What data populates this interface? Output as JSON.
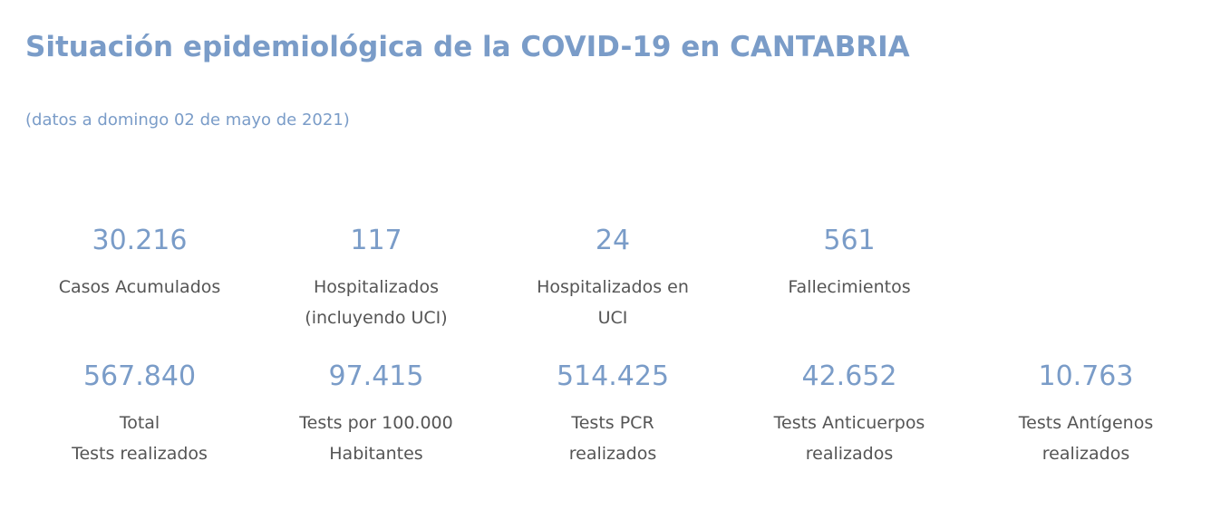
{
  "header": {
    "title": "Situación epidemiológica de la COVID-19 en CANTABRIA",
    "subtitle": "(datos a domingo 02 de mayo de 2021)"
  },
  "colors": {
    "accent": "#7a9cc8",
    "label": "#555555",
    "background": "#ffffff"
  },
  "stats_row1": [
    {
      "value": "30.216",
      "label_line1": "Casos Acumulados",
      "label_line2": ""
    },
    {
      "value": "117",
      "label_line1": "Hospitalizados",
      "label_line2": "(incluyendo UCI)"
    },
    {
      "value": "24",
      "label_line1": "Hospitalizados en",
      "label_line2": "UCI"
    },
    {
      "value": "561",
      "label_line1": "Fallecimientos",
      "label_line2": ""
    }
  ],
  "stats_row2": [
    {
      "value": "567.840",
      "label_line1": "Total",
      "label_line2": "Tests realizados"
    },
    {
      "value": "97.415",
      "label_line1": "Tests por 100.000",
      "label_line2": "Habitantes"
    },
    {
      "value": "514.425",
      "label_line1": " Tests PCR",
      "label_line2": "realizados"
    },
    {
      "value": "42.652",
      "label_line1": "Tests Anticuerpos",
      "label_line2": "realizados"
    },
    {
      "value": "10.763",
      "label_line1": "Tests Antígenos",
      "label_line2": "realizados"
    }
  ]
}
